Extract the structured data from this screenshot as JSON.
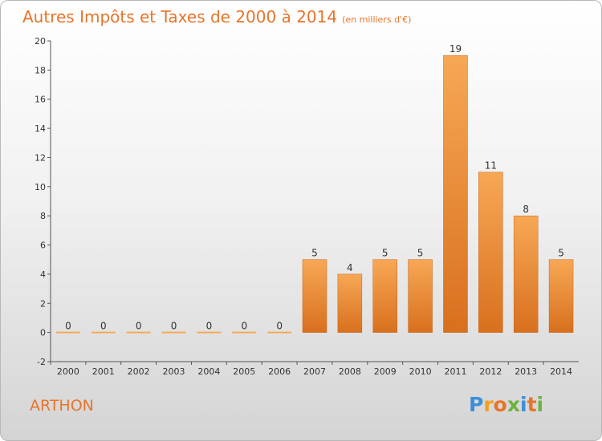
{
  "header": {
    "title": "Autres Impôts et Taxes de 2000 à 2014",
    "unit": "(en milliers d'€)"
  },
  "commune": "ARTHON",
  "logo": {
    "letters": [
      "P",
      "r",
      "o",
      "x",
      "i",
      "t",
      "i"
    ],
    "colors": [
      "#3b8fd6",
      "#f0a020",
      "#e8742a",
      "#6cb33f",
      "#3b8fd6",
      "#e8742a",
      "#6cb33f"
    ]
  },
  "chart_data": {
    "type": "bar",
    "categories": [
      "2000",
      "2001",
      "2002",
      "2003",
      "2004",
      "2005",
      "2006",
      "2007",
      "2008",
      "2009",
      "2010",
      "2011",
      "2012",
      "2013",
      "2014"
    ],
    "values": [
      0,
      0,
      0,
      0,
      0,
      0,
      0,
      5,
      4,
      5,
      5,
      19,
      11,
      8,
      5
    ],
    "ylim": [
      -2,
      20
    ],
    "yticks": [
      -2,
      0,
      2,
      4,
      6,
      8,
      10,
      12,
      14,
      16,
      18,
      20
    ],
    "grid": false,
    "bar_color_light": "#f7a855",
    "bar_color_dark": "#d8701e",
    "label_color": "#333333"
  }
}
